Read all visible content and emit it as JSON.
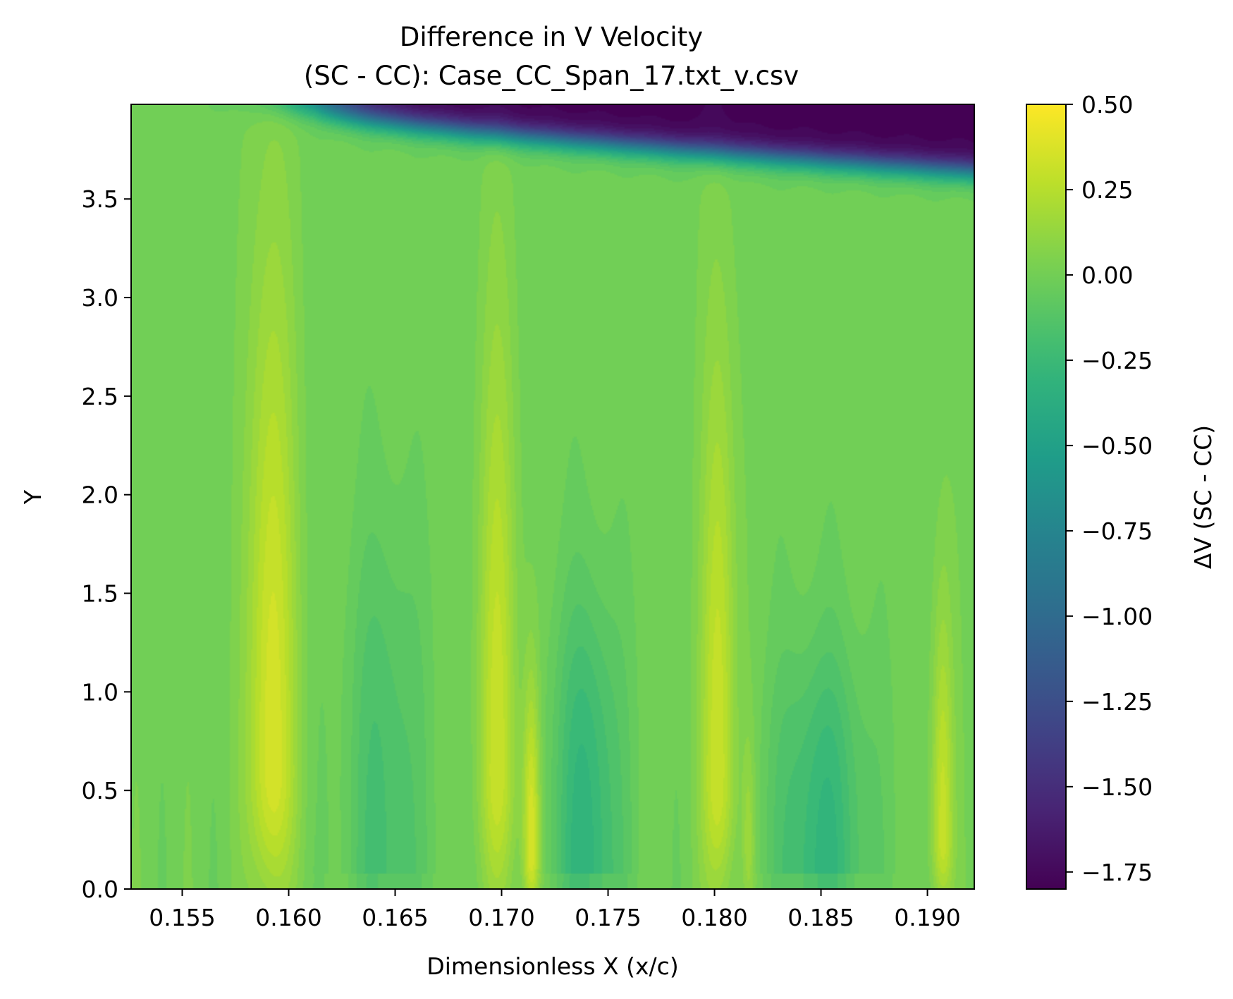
{
  "chart_data": {
    "type": "heatmap",
    "title": "Difference in V Velocity",
    "subtitle": "(SC - CC): Case_CC_Span_17.txt_v.csv",
    "xlabel": "Dimensionless X (x/c)",
    "ylabel": "Y",
    "xlim": [
      0.1526,
      0.1922
    ],
    "ylim": [
      0.0,
      3.98
    ],
    "x_ticks": [
      "0.155",
      "0.160",
      "0.165",
      "0.170",
      "0.175",
      "0.180",
      "0.185",
      "0.190"
    ],
    "y_ticks": [
      "0.0",
      "0.5",
      "1.0",
      "1.5",
      "2.0",
      "2.5",
      "3.0",
      "3.5"
    ],
    "colormap": "viridis",
    "colorbar": {
      "label": "ΔV (SC - CC)",
      "range": [
        -1.8,
        0.5
      ],
      "ticks": [
        "0.50",
        "0.25",
        "0.00",
        "−0.25",
        "−0.50",
        "−0.75",
        "−1.00",
        "−1.25",
        "−1.50",
        "−1.75"
      ]
    },
    "features": {
      "background_value": 0.0,
      "positive_jets": [
        {
          "x": 0.1592,
          "peak_value": 0.38,
          "peak_y": 0.6,
          "width": 0.0011,
          "height": 2.6
        },
        {
          "x": 0.1698,
          "peak_value": 0.3,
          "peak_y": 0.6,
          "width": 0.0009,
          "height": 2.3
        },
        {
          "x": 0.1714,
          "peak_value": 0.4,
          "peak_y": 0.18,
          "width": 0.0004,
          "height": 0.9
        },
        {
          "x": 0.1802,
          "peak_value": 0.33,
          "peak_y": 0.55,
          "width": 0.0008,
          "height": 2.2
        },
        {
          "x": 0.1816,
          "peak_value": 0.15,
          "peak_y": 0.2,
          "width": 0.0003,
          "height": 0.6
        },
        {
          "x": 0.1907,
          "peak_value": 0.32,
          "peak_y": 0.25,
          "width": 0.0005,
          "height": 1.2
        }
      ],
      "negative_regions": [
        {
          "x": 0.1645,
          "min_value": -0.2,
          "y_top": 2.2,
          "width": 0.0018
        },
        {
          "x": 0.174,
          "min_value": -0.32,
          "y_top": 1.8,
          "width": 0.0016
        },
        {
          "x": 0.185,
          "min_value": -0.3,
          "y_top": 1.5,
          "width": 0.0022
        }
      ],
      "top_shear_layer": {
        "min_value": -1.8,
        "x_start": 0.1612,
        "y_edge_start": 3.95,
        "y_edge_end": 3.64
      }
    }
  }
}
